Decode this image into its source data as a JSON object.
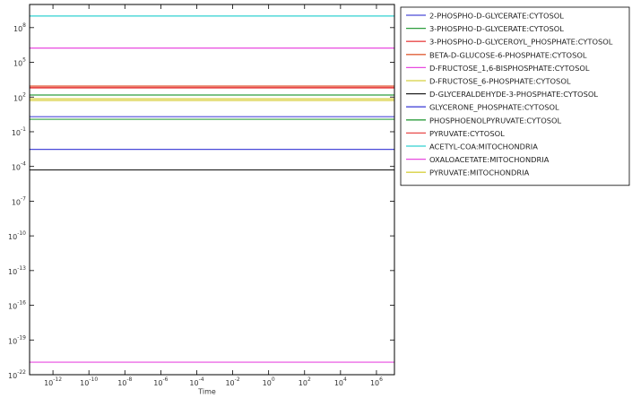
{
  "chart_data": {
    "type": "line",
    "x_label": "Time",
    "xscale": "log",
    "yscale": "log",
    "xlim": [
      5e-14,
      10000000.0
    ],
    "ylim": [
      1e-22,
      10000000000.0
    ],
    "xticks": [
      {
        "value": 1e-12,
        "label": "10^-12"
      },
      {
        "value": 1e-10,
        "label": "10^-10"
      },
      {
        "value": 1e-08,
        "label": "10^-8"
      },
      {
        "value": 1e-06,
        "label": "10^-6"
      },
      {
        "value": 0.0001,
        "label": "10^-4"
      },
      {
        "value": 0.01,
        "label": "10^-2"
      },
      {
        "value": 1,
        "label": "10^0"
      },
      {
        "value": 100,
        "label": "10^2"
      },
      {
        "value": 10000,
        "label": "10^4"
      },
      {
        "value": 1000000,
        "label": "10^6"
      }
    ],
    "yticks": [
      {
        "value": 1e-22,
        "label": "10^-22"
      },
      {
        "value": 1e-19,
        "label": "10^-19"
      },
      {
        "value": 1e-16,
        "label": "10^-16"
      },
      {
        "value": 1e-13,
        "label": "10^-13"
      },
      {
        "value": 1e-10,
        "label": "10^-10"
      },
      {
        "value": 1e-07,
        "label": "10^-7"
      },
      {
        "value": 0.0001,
        "label": "10^-4"
      },
      {
        "value": 0.1,
        "label": "10^-1"
      },
      {
        "value": 100,
        "label": "10^2"
      },
      {
        "value": 100000,
        "label": "10^5"
      },
      {
        "value": 100000000,
        "label": "10^8"
      }
    ],
    "x": [
      5e-14,
      10000000.0
    ],
    "series": [
      {
        "name": "2-PHOSPHO-D-GLYCERATE:CYTOSOL",
        "color": "#4a4ad8",
        "values": [
          0.003,
          0.003
        ]
      },
      {
        "name": "3-PHOSPHO-D-GLYCERATE:CYTOSOL",
        "color": "#2e9e3e",
        "values": [
          150,
          150
        ]
      },
      {
        "name": "3-PHOSPHO-D-GLYCEROYL_PHOSPHATE:CYTOSOL",
        "color": "#e84a4a",
        "values": [
          700,
          700
        ]
      },
      {
        "name": "BETA-D-GLUCOSE-6-PHOSPHATE:CYTOSOL",
        "color": "#e0603a",
        "values": [
          900,
          900
        ]
      },
      {
        "name": "D-FRUCTOSE_1,6-BISPHOSPHATE:CYTOSOL",
        "color": "#e84ae0",
        "values": [
          1700000,
          1700000
        ]
      },
      {
        "name": "D-FRUCTOSE_6-PHOSPHATE:CYTOSOL",
        "color": "#d8d040",
        "values": [
          70,
          70
        ]
      },
      {
        "name": "D-GLYCERALDEHYDE-3-PHOSPHATE:CYTOSOL",
        "color": "#222222",
        "values": [
          5e-05,
          5e-05
        ]
      },
      {
        "name": "GLYCERONE_PHOSPHATE:CYTOSOL",
        "color": "#4a4ad8",
        "values": [
          2,
          2
        ]
      },
      {
        "name": "PHOSPHOENOLPYRUVATE:CYTOSOL",
        "color": "#2e9e3e",
        "values": [
          1.2,
          1.2
        ]
      },
      {
        "name": "PYRUVATE:CYTOSOL",
        "color": "#e84a4a",
        "values": [
          600,
          600
        ]
      },
      {
        "name": "ACETYL-COA:MITOCHONDRIA",
        "color": "#30d0d0",
        "values": [
          1000000000,
          1000000000
        ]
      },
      {
        "name": "OXALOACETATE:MITOCHONDRIA",
        "color": "#e84ae0",
        "values": [
          1.2e-21,
          1.2e-21
        ]
      },
      {
        "name": "PYRUVATE:MITOCHONDRIA",
        "color": "#d8d040",
        "values": [
          50,
          50
        ]
      }
    ],
    "legend": "upper-right-outside"
  }
}
